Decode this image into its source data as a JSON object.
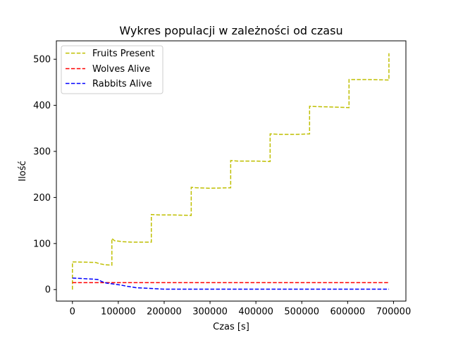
{
  "chart_data": {
    "type": "line",
    "title": "Wykres populacji w zależności od czasu",
    "xlabel": "Czas [s]",
    "ylabel": "Ilość",
    "xlim": [
      -35000,
      727000
    ],
    "ylim": [
      -25,
      540
    ],
    "xticks": [
      0,
      100000,
      200000,
      300000,
      400000,
      500000,
      600000,
      700000
    ],
    "xtick_labels": [
      "0",
      "100000",
      "200000",
      "300000",
      "400000",
      "500000",
      "600000",
      "700000"
    ],
    "yticks": [
      0,
      100,
      200,
      300,
      400,
      500
    ],
    "ytick_labels": [
      "0",
      "100",
      "200",
      "300",
      "400",
      "500"
    ],
    "grid": false,
    "legend_position": "top-left",
    "series": [
      {
        "name": "Fruits Present",
        "color": "#bfbf00",
        "linestyle": "dashed",
        "points": [
          [
            0,
            0
          ],
          [
            0,
            60
          ],
          [
            8000,
            60
          ],
          [
            50000,
            59
          ],
          [
            60000,
            56
          ],
          [
            70000,
            54
          ],
          [
            86000,
            53
          ],
          [
            86000,
            111
          ],
          [
            92000,
            106
          ],
          [
            110000,
            104
          ],
          [
            130000,
            103
          ],
          [
            172000,
            103
          ],
          [
            172000,
            163
          ],
          [
            190000,
            162
          ],
          [
            220000,
            162
          ],
          [
            259000,
            161
          ],
          [
            259000,
            222
          ],
          [
            270000,
            221
          ],
          [
            300000,
            220
          ],
          [
            345000,
            221
          ],
          [
            345000,
            280
          ],
          [
            360000,
            279
          ],
          [
            400000,
            279
          ],
          [
            431000,
            278
          ],
          [
            431000,
            338
          ],
          [
            450000,
            337
          ],
          [
            490000,
            337
          ],
          [
            517000,
            338
          ],
          [
            517000,
            398
          ],
          [
            540000,
            397
          ],
          [
            580000,
            396
          ],
          [
            603000,
            395
          ],
          [
            603000,
            456
          ],
          [
            640000,
            456
          ],
          [
            690000,
            455
          ],
          [
            690000,
            513
          ]
        ]
      },
      {
        "name": "Wolves Alive",
        "color": "#ff0000",
        "linestyle": "dashed",
        "points": [
          [
            0,
            15
          ],
          [
            690000,
            15
          ]
        ]
      },
      {
        "name": "Rabbits Alive",
        "color": "#0000ff",
        "linestyle": "dashed",
        "points": [
          [
            0,
            25
          ],
          [
            20000,
            24
          ],
          [
            40000,
            23
          ],
          [
            55000,
            22
          ],
          [
            65000,
            17
          ],
          [
            75000,
            14
          ],
          [
            90000,
            12
          ],
          [
            105000,
            10
          ],
          [
            120000,
            7
          ],
          [
            140000,
            4
          ],
          [
            160000,
            3
          ],
          [
            180000,
            2
          ],
          [
            200000,
            1
          ],
          [
            690000,
            1
          ]
        ]
      }
    ]
  }
}
